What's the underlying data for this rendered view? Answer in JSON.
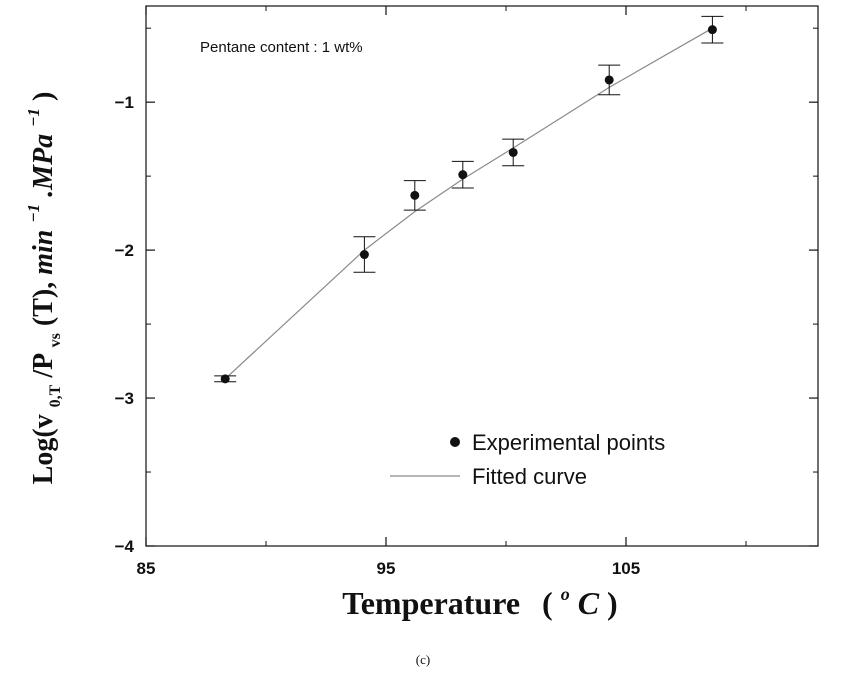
{
  "chart_data": {
    "type": "scatter",
    "annotation": "Pentane content : 1 wt%",
    "xlabel": {
      "main": "Temperature",
      "open": "( ",
      "degree": "o",
      "unit": "C",
      "close": " )"
    },
    "ylabel": {
      "prefix": "Log(v",
      "sub1": "0,T",
      "mid": "/P",
      "sub2": "vs",
      "suffix": "(T), ",
      "unit1": "min",
      "exp1": "−1",
      "dot": ".MPa",
      "exp2": "−1",
      "end": ")"
    },
    "caption": "(c)",
    "xlim": [
      85,
      113
    ],
    "ylim": [
      -4,
      -0.35
    ],
    "xticks": [
      {
        "value": 85,
        "label": "85"
      },
      {
        "value": 95,
        "label": "95"
      },
      {
        "value": 105,
        "label": "105"
      }
    ],
    "yticks": [
      {
        "value": -1,
        "label": "−1"
      },
      {
        "value": -2,
        "label": "−2"
      },
      {
        "value": -3,
        "label": "−3"
      },
      {
        "value": -4,
        "label": "−4"
      }
    ],
    "series": [
      {
        "name": "Experimental points",
        "marker": "circle",
        "points": [
          {
            "x": 88.3,
            "y": -2.87,
            "err": 0.02
          },
          {
            "x": 94.1,
            "y": -2.03,
            "err": 0.12
          },
          {
            "x": 96.2,
            "y": -1.63,
            "err": 0.1
          },
          {
            "x": 98.2,
            "y": -1.49,
            "err": 0.09
          },
          {
            "x": 100.3,
            "y": -1.34,
            "err": 0.09
          },
          {
            "x": 104.3,
            "y": -0.85,
            "err": 0.1
          },
          {
            "x": 108.6,
            "y": -0.51,
            "err": 0.09
          }
        ]
      },
      {
        "name": "Fitted curve",
        "line": true,
        "points": [
          {
            "x": 88.3,
            "y": -2.87
          },
          {
            "x": 94.1,
            "y": -2.0
          },
          {
            "x": 96.2,
            "y": -1.74
          },
          {
            "x": 98.2,
            "y": -1.52
          },
          {
            "x": 100.3,
            "y": -1.31
          },
          {
            "x": 104.3,
            "y": -0.9
          },
          {
            "x": 108.6,
            "y": -0.5
          }
        ]
      }
    ],
    "grid": false,
    "legend_position": "lower-right",
    "colors": {
      "axis": "#111111",
      "marker": "#111111",
      "fit_line": "#8a8a8a"
    }
  }
}
